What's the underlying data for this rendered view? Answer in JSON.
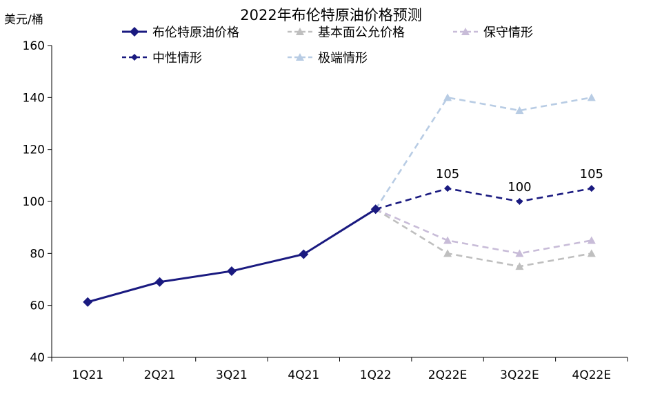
{
  "chart_data": {
    "type": "line",
    "title": "2022年布伦特原油价格预测",
    "ylabel": "美元/桶",
    "xlabel": "",
    "categories": [
      "1Q21",
      "2Q21",
      "3Q21",
      "4Q21",
      "1Q22",
      "2Q22E",
      "3Q22E",
      "4Q22E"
    ],
    "ylim": [
      40,
      160
    ],
    "yticks": [
      40,
      60,
      80,
      100,
      120,
      140,
      160
    ],
    "grid": false,
    "legend": "top",
    "series": [
      {
        "name": "布伦特原油价格",
        "color": "#1a1a80",
        "style": "solid",
        "marker": "diamond",
        "values": [
          61.3,
          69.0,
          73.2,
          79.7,
          97.0,
          null,
          null,
          null
        ]
      },
      {
        "name": "基本面公允价格",
        "color": "#bfbfbf",
        "style": "dashed",
        "marker": "triangle",
        "values": [
          null,
          null,
          null,
          null,
          97.0,
          80,
          75,
          80
        ]
      },
      {
        "name": "保守情形",
        "color": "#c8bcd8",
        "style": "dashed",
        "marker": "triangle",
        "values": [
          null,
          null,
          null,
          null,
          97.0,
          85,
          80,
          85
        ]
      },
      {
        "name": "中性情形",
        "color": "#1a1a80",
        "style": "dashed",
        "marker": "diamond-small",
        "values": [
          null,
          null,
          null,
          null,
          97.0,
          105,
          100,
          105
        ]
      },
      {
        "name": "极端情形",
        "color": "#b8cce4",
        "style": "dashed",
        "marker": "triangle",
        "values": [
          null,
          null,
          null,
          null,
          97.0,
          140,
          135,
          140
        ]
      }
    ],
    "data_labels": [
      {
        "series": "中性情形",
        "category": "2Q22E",
        "text": "105"
      },
      {
        "series": "中性情形",
        "category": "3Q22E",
        "text": "100"
      },
      {
        "series": "中性情形",
        "category": "4Q22E",
        "text": "105"
      }
    ]
  }
}
